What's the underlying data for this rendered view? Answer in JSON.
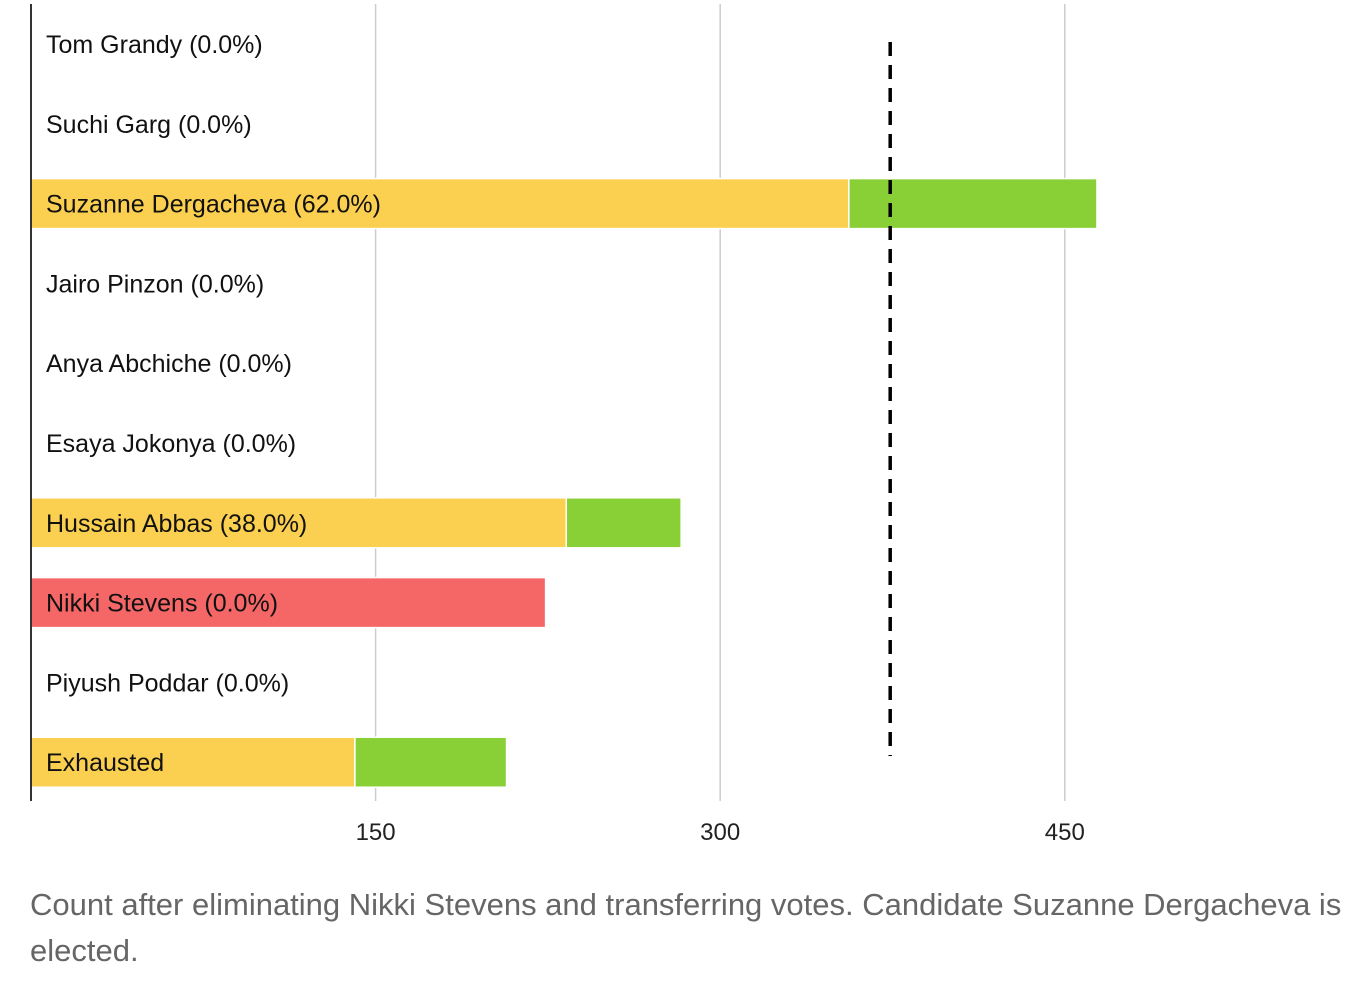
{
  "chart_data": {
    "type": "bar",
    "orientation": "horizontal",
    "stacked": true,
    "categories": [
      "Tom Grandy (0.0%)",
      "Suchi Garg (0.0%)",
      "Suzanne Dergacheva (62.0%)",
      "Jairo Pinzon (0.0%)",
      "Anya Abchiche (0.0%)",
      "Esaya Jokonya (0.0%)",
      "Hussain Abbas (38.0%)",
      "Nikki Stevens (0.0%)",
      "Piyush Poddar (0.0%)",
      "Exhausted"
    ],
    "series": [
      {
        "key": "existing",
        "color": "#fbd050",
        "values": [
          0,
          0,
          356,
          0,
          0,
          0,
          233,
          0,
          0,
          141
        ]
      },
      {
        "key": "transferred",
        "color": "#88d036",
        "values": [
          0,
          0,
          108,
          0,
          0,
          0,
          50,
          0,
          0,
          66
        ]
      },
      {
        "key": "eliminated",
        "color": "#f46766",
        "values": [
          0,
          0,
          0,
          0,
          0,
          0,
          0,
          224,
          0,
          0
        ]
      }
    ],
    "x_ticks": [
      150,
      300,
      450
    ],
    "xlim": [
      0,
      575
    ],
    "threshold": 374,
    "grid": true,
    "title": "",
    "xlabel": "",
    "ylabel": ""
  },
  "caption": "Count after eliminating Nikki Stevens and transferring votes. Candidate Suzanne Dergacheva is elected."
}
